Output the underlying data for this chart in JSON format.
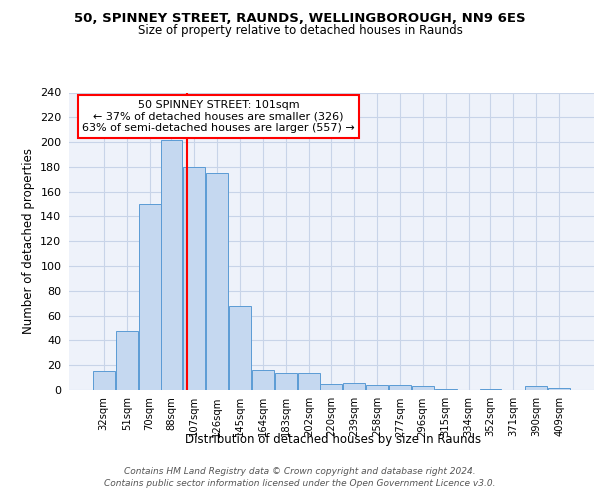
{
  "title1": "50, SPINNEY STREET, RAUNDS, WELLINGBOROUGH, NN9 6ES",
  "title2": "Size of property relative to detached houses in Raunds",
  "xlabel": "Distribution of detached houses by size in Raunds",
  "ylabel": "Number of detached properties",
  "categories": [
    "32sqm",
    "51sqm",
    "70sqm",
    "88sqm",
    "107sqm",
    "126sqm",
    "145sqm",
    "164sqm",
    "183sqm",
    "202sqm",
    "220sqm",
    "239sqm",
    "258sqm",
    "277sqm",
    "296sqm",
    "315sqm",
    "334sqm",
    "352sqm",
    "371sqm",
    "390sqm",
    "409sqm"
  ],
  "values": [
    15,
    48,
    150,
    202,
    180,
    175,
    68,
    16,
    14,
    14,
    5,
    6,
    4,
    4,
    3,
    1,
    0,
    1,
    0,
    3,
    2
  ],
  "bar_color": "#c5d8f0",
  "bar_edge_color": "#5b9bd5",
  "grid_color": "#c8d4e8",
  "background_color": "#eef2fa",
  "annotation_line1": "50 SPINNEY STREET: 101sqm",
  "annotation_line2": "← 37% of detached houses are smaller (326)",
  "annotation_line3": "63% of semi-detached houses are larger (557) →",
  "annotation_box_color": "white",
  "annotation_border_color": "red",
  "vline_color": "red",
  "vline_x": 101,
  "ylim": [
    0,
    240
  ],
  "yticks": [
    0,
    20,
    40,
    60,
    80,
    100,
    120,
    140,
    160,
    180,
    200,
    220,
    240
  ],
  "footer_line1": "Contains HM Land Registry data © Crown copyright and database right 2024.",
  "footer_line2": "Contains public sector information licensed under the Open Government Licence v3.0.",
  "bin_width": 19
}
